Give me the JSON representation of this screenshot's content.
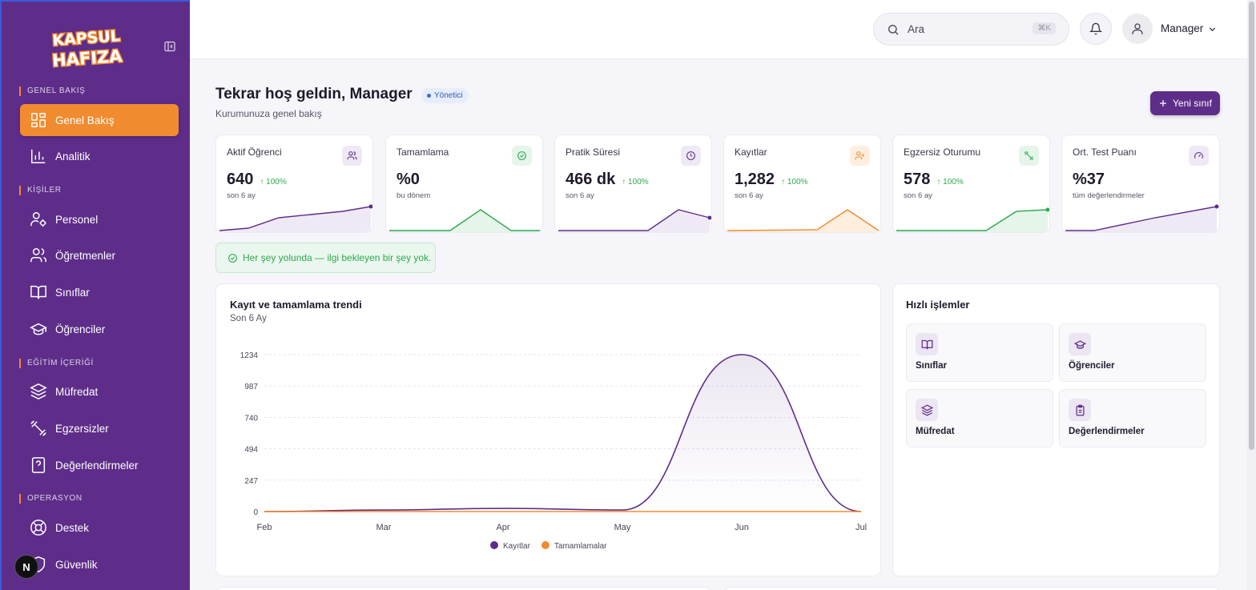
{
  "brand": {
    "logo_text_line1": "KAPSUL",
    "logo_text_line2": "HAFIZA"
  },
  "sidebar": {
    "sections": [
      {
        "label": "GENEL BAKIŞ"
      },
      {
        "label": "KİŞİLER"
      },
      {
        "label": "EĞİTİM İÇERİĞİ"
      },
      {
        "label": "OPERASYON"
      }
    ],
    "items": [
      {
        "label": "Genel Bakış",
        "icon": "dashboard-icon",
        "active": true
      },
      {
        "label": "Analitik",
        "icon": "bar-chart-icon"
      },
      {
        "label": "Personel",
        "icon": "user-cog-icon"
      },
      {
        "label": "Öğretmenler",
        "icon": "users-icon"
      },
      {
        "label": "Sınıflar",
        "icon": "book-open-icon"
      },
      {
        "label": "Öğrenciler",
        "icon": "graduation-cap-icon"
      },
      {
        "label": "Müfredat",
        "icon": "layers-icon"
      },
      {
        "label": "Egzersizler",
        "icon": "dumbbell-icon"
      },
      {
        "label": "Değerlendirmeler",
        "icon": "question-file-icon"
      },
      {
        "label": "Destek",
        "icon": "life-buoy-icon"
      },
      {
        "label": "Güvenlik",
        "icon": "shield-icon"
      }
    ],
    "dev_badge": "N"
  },
  "topbar": {
    "search_placeholder": "Ara",
    "search_shortcut": "⌘K",
    "user_name": "Manager"
  },
  "header": {
    "welcome": "Tekrar hoş geldin, Manager",
    "role_badge": "Yönetici",
    "subtitle": "Kurumunuza genel bakış",
    "new_class_label": "Yeni sınıf"
  },
  "stats": [
    {
      "label": "Aktif Öğrenci",
      "value": "640",
      "delta": "100%",
      "sub": "son 6 ay",
      "icon": "users-icon",
      "color": "#5e2d8a"
    },
    {
      "label": "Tamamlama",
      "value": "%0",
      "delta": "",
      "sub": "bu dönem",
      "icon": "check-circle-icon",
      "color": "#2fa84f"
    },
    {
      "label": "Pratik Süresi",
      "value": "466 dk",
      "delta": "100%",
      "sub": "son 6 ay",
      "icon": "clock-icon",
      "color": "#5e2d8a"
    },
    {
      "label": "Kayıtlar",
      "value": "1,282",
      "delta": "100%",
      "sub": "son 6 ay",
      "icon": "user-plus-icon",
      "color": "#f18b30"
    },
    {
      "label": "Egzersiz Oturumu",
      "value": "578",
      "delta": "100%",
      "sub": "son 6 ay",
      "icon": "dumbbell-icon",
      "color": "#2fa84f"
    },
    {
      "label": "Ort. Test Puanı",
      "value": "%37",
      "delta": "",
      "sub": "tüm değerlendirmeler",
      "icon": "gauge-icon",
      "color": "#5e2d8a"
    }
  ],
  "alert": {
    "text": "Her şey yolunda — ilgi bekleyen bir şey yok."
  },
  "trend_card": {
    "title": "Kayıt ve tamamlama trendi",
    "subtitle": "Son 6 Ay"
  },
  "chart_data": {
    "type": "line",
    "categories": [
      "Feb",
      "Mar",
      "Apr",
      "May",
      "Jun",
      "Jul"
    ],
    "yticks": [
      0,
      247,
      494,
      740,
      987,
      1234
    ],
    "ylim": [
      0,
      1234
    ],
    "series": [
      {
        "name": "Kayıtlar",
        "color": "#5e2d8a",
        "values": [
          0,
          12,
          25,
          12,
          1234,
          0
        ]
      },
      {
        "name": "Tamamlamalar",
        "color": "#f18b30",
        "values": [
          0,
          0,
          0,
          0,
          0,
          0
        ]
      }
    ],
    "grid": true,
    "legend": "bottom-center"
  },
  "quick_actions": {
    "title": "Hızlı işlemler",
    "items": [
      {
        "label": "Sınıflar",
        "icon": "book-open-icon"
      },
      {
        "label": "Öğrenciler",
        "icon": "graduation-cap-icon"
      },
      {
        "label": "Müfredat",
        "icon": "layers-icon"
      },
      {
        "label": "Değerlendirmeler",
        "icon": "clipboard-icon"
      }
    ]
  }
}
